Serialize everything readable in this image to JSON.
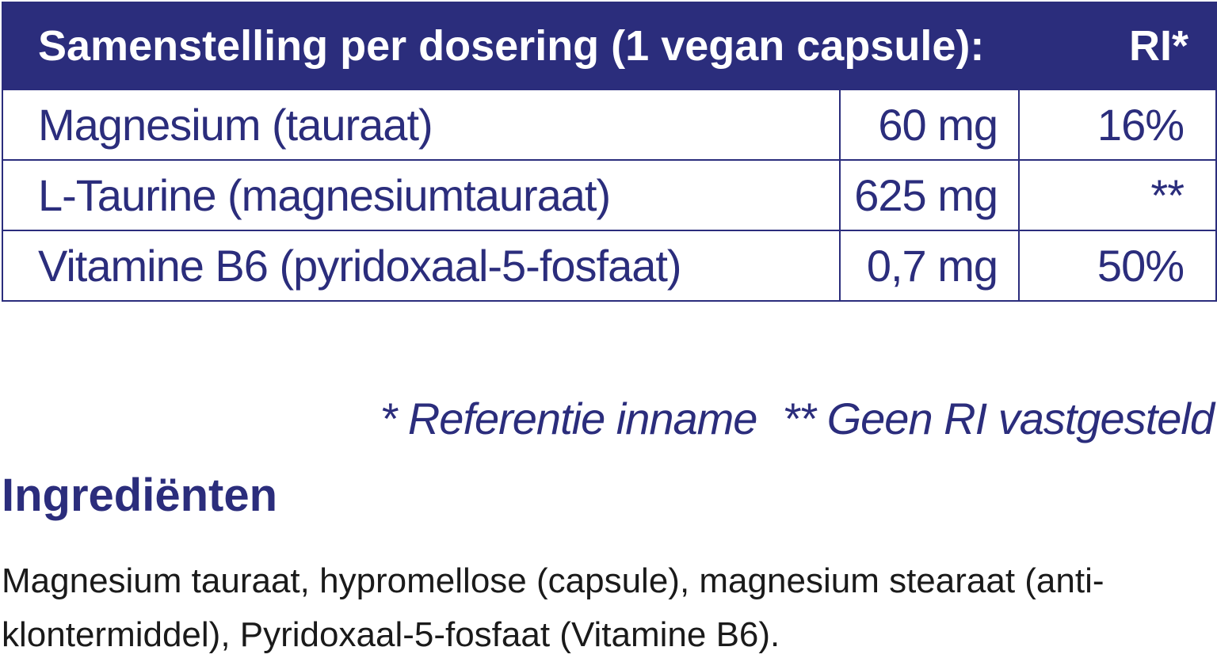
{
  "table": {
    "header": {
      "label": "Samenstelling per dosering (1 vegan capsule):",
      "ri": "RI*"
    },
    "rows": [
      {
        "name": "Magnesium (tauraat)",
        "amount": "60 mg",
        "ri": "16%"
      },
      {
        "name": "L-Taurine (magnesiumtauraat)",
        "amount": "625 mg",
        "ri": "**"
      },
      {
        "name": "Vitamine B6 (pyridoxaal-5-fosfaat)",
        "amount": "0,7 mg",
        "ri": "50%"
      }
    ]
  },
  "footnotes": {
    "ri_note": "* Referentie inname",
    "no_ri_note": "** Geen RI vastgesteld"
  },
  "ingredients": {
    "title": "Ingrediënten",
    "text": "Magnesium tauraat, hypromellose (capsule), magnesium stearaat (anti-klontermiddel), Pyridoxaal-5-fosfaat (Vitamine B6)."
  },
  "colors": {
    "brand_navy": "#2b2d7c",
    "body_text": "#1a1a1a",
    "background": "#ffffff"
  }
}
